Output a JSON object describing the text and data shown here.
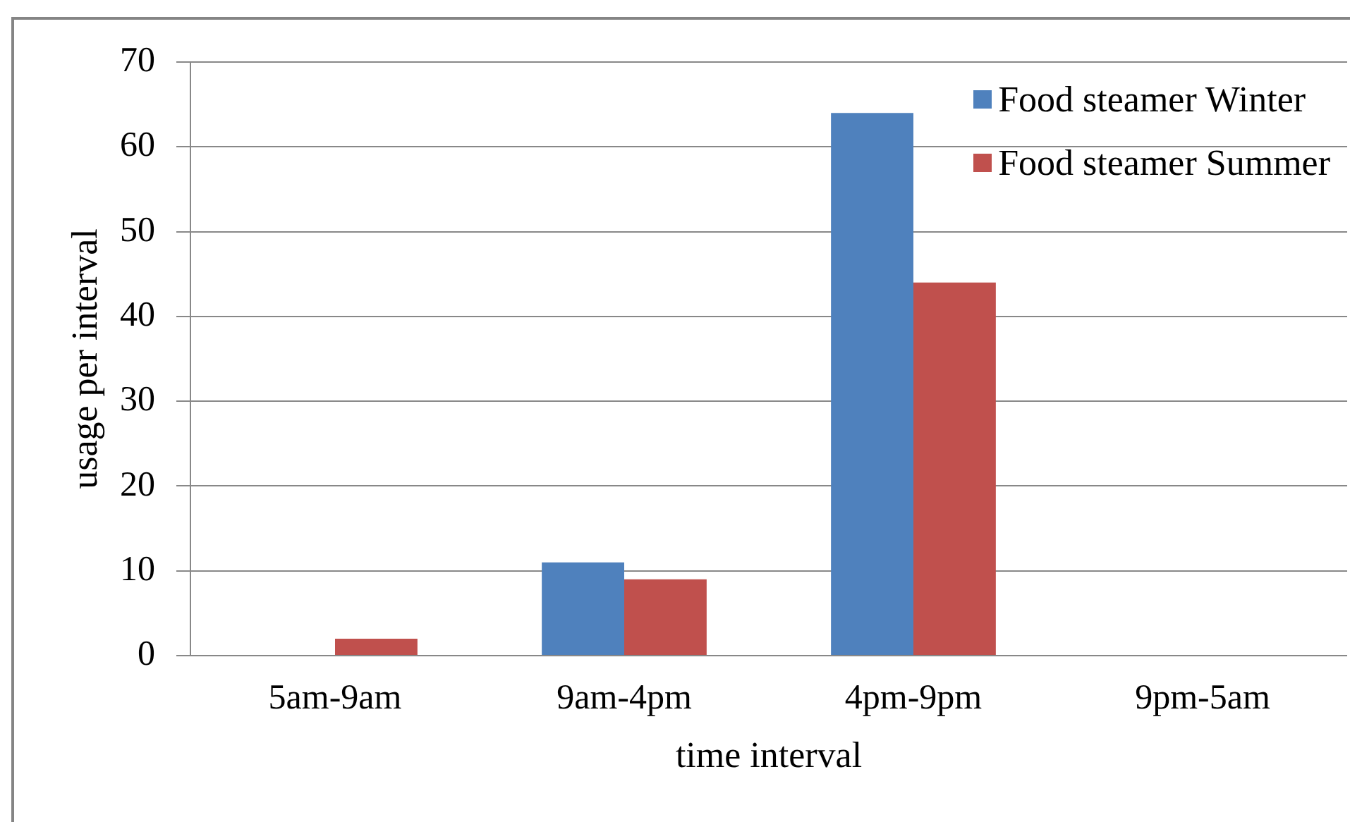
{
  "chart_data": {
    "type": "bar",
    "categories": [
      "5am-9am",
      "9am-4pm",
      "4pm-9pm",
      "9pm-5am"
    ],
    "series": [
      {
        "name": "Food steamer Winter",
        "color": "#4f81bd",
        "values": [
          0,
          11,
          64,
          0
        ]
      },
      {
        "name": "Food steamer Summer",
        "color": "#c0504d",
        "values": [
          2,
          9,
          44,
          0
        ]
      }
    ],
    "xlabel": "time interval",
    "ylabel": "usage per interval",
    "ylim": [
      0,
      70
    ],
    "yticks": [
      0,
      10,
      20,
      30,
      40,
      50,
      60,
      70
    ],
    "grid": "y",
    "legend": "top right"
  }
}
